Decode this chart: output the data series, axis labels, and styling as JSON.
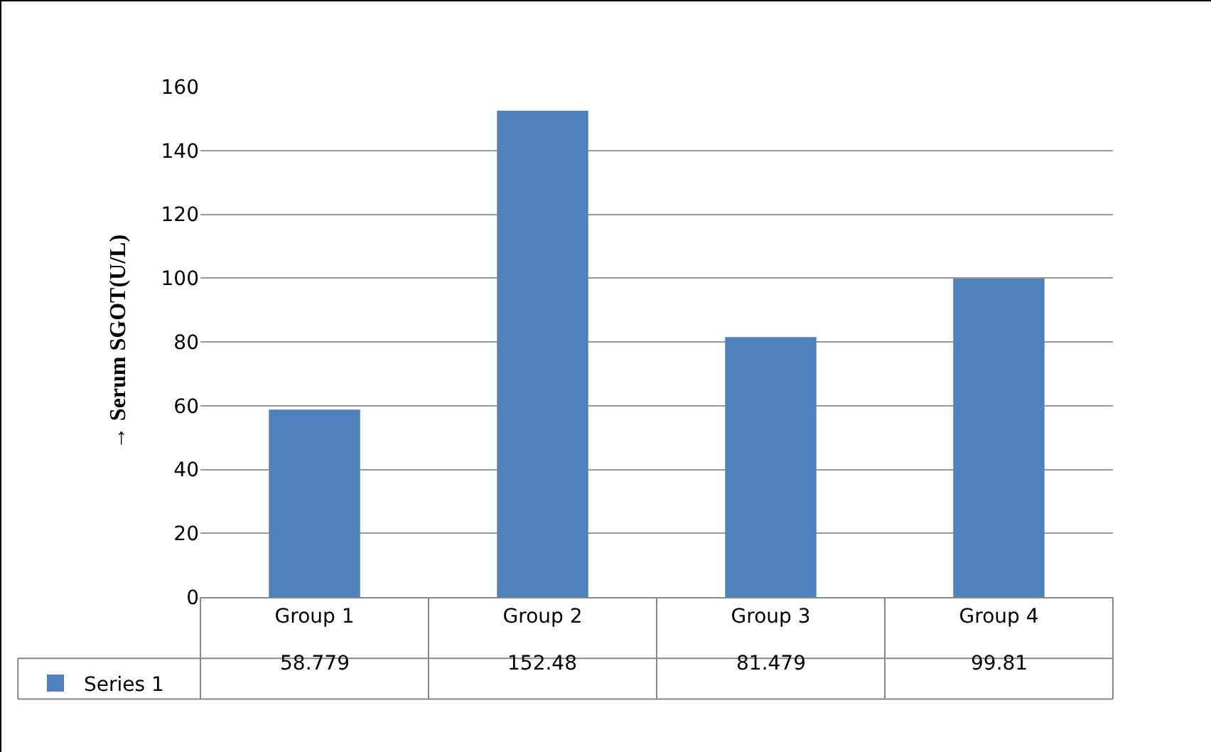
{
  "chart_data": {
    "type": "bar",
    "ylabel": "→ Serum SGOT(U/L)",
    "categories": [
      "Group 1",
      "Group 2",
      "Group 3",
      "Group 4"
    ],
    "series": [
      {
        "name": "Series 1",
        "color": "#4f81bd",
        "values": [
          58.779,
          152.48,
          81.479,
          99.81
        ]
      }
    ],
    "ylim": [
      0,
      160
    ],
    "yticks": [
      0,
      20,
      40,
      60,
      80,
      100,
      120,
      140,
      160
    ],
    "grid": "y",
    "legend": "bottom left",
    "data_labels": true
  }
}
